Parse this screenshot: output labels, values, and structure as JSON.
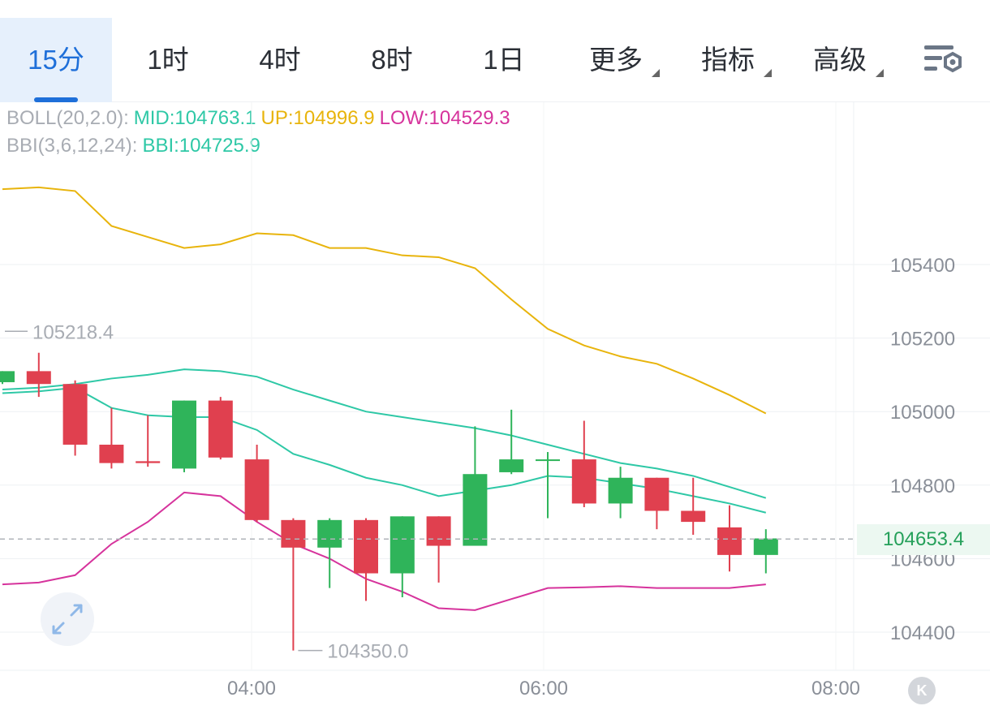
{
  "tabs": [
    {
      "label": "15分",
      "active": true
    },
    {
      "label": "1时",
      "active": false
    },
    {
      "label": "4时",
      "active": false
    },
    {
      "label": "8时",
      "active": false
    },
    {
      "label": "1日",
      "active": false
    },
    {
      "label": "更多",
      "active": false,
      "dropdown": true
    },
    {
      "label": "指标",
      "active": false,
      "dropdown": true
    },
    {
      "label": "高级",
      "active": false,
      "dropdown": true
    }
  ],
  "settings_icon": "chart-settings-icon",
  "legend": {
    "boll_name": "BOLL(20,2.0):",
    "boll_mid": "MID:104763.1",
    "boll_up": "UP:104996.9",
    "boll_low": "LOW:104529.3",
    "bbi_name": "BBI(3,6,12,24):",
    "bbi_value": "BBI:104725.9"
  },
  "current_price": "104653.4",
  "high_marker": "105218.4",
  "low_marker": "104350.0",
  "collapse_icon": "collapse-left-icon",
  "expand_icon": "expand-icon",
  "colors": {
    "up": "#2fb45a",
    "down": "#e0404f",
    "boll_up": "#e8b40c",
    "boll_mid": "#2ec8a6",
    "boll_low": "#d6339c",
    "bbi": "#2ec8a6",
    "accent": "#1e6fd9"
  },
  "chart_data": {
    "type": "candlestick",
    "x_ticks": [
      "04:00",
      "06:00",
      "08:00"
    ],
    "y_ticks": [
      105400,
      105200,
      105000,
      104800,
      104600,
      104400
    ],
    "y_range": [
      104310,
      105720
    ],
    "candles": [
      {
        "o": 105080,
        "h": 105110,
        "l": 105075,
        "c": 105110
      },
      {
        "o": 105110,
        "h": 105160,
        "l": 105040,
        "c": 105075
      },
      {
        "o": 105075,
        "h": 105085,
        "l": 104880,
        "c": 104910
      },
      {
        "o": 104910,
        "h": 105010,
        "l": 104845,
        "c": 104860
      },
      {
        "o": 104865,
        "h": 104990,
        "l": 104850,
        "c": 104860
      },
      {
        "o": 104845,
        "h": 105030,
        "l": 104835,
        "c": 105030
      },
      {
        "o": 105030,
        "h": 105040,
        "l": 104870,
        "c": 104875
      },
      {
        "o": 104870,
        "h": 104910,
        "l": 104700,
        "c": 104705
      },
      {
        "o": 104705,
        "h": 104710,
        "l": 104350,
        "c": 104630
      },
      {
        "o": 104630,
        "h": 104710,
        "l": 104520,
        "c": 104705
      },
      {
        "o": 104705,
        "h": 104710,
        "l": 104485,
        "c": 104560
      },
      {
        "o": 104560,
        "h": 104715,
        "l": 104495,
        "c": 104715
      },
      {
        "o": 104715,
        "h": 104715,
        "l": 104535,
        "c": 104635
      },
      {
        "o": 104635,
        "h": 104960,
        "l": 104635,
        "c": 104830
      },
      {
        "o": 104835,
        "h": 105005,
        "l": 104830,
        "c": 104870
      },
      {
        "o": 104870,
        "h": 104890,
        "l": 104710,
        "c": 104870
      },
      {
        "o": 104870,
        "h": 104975,
        "l": 104740,
        "c": 104750
      },
      {
        "o": 104750,
        "h": 104850,
        "l": 104710,
        "c": 104820
      },
      {
        "o": 104820,
        "h": 104820,
        "l": 104680,
        "c": 104730
      },
      {
        "o": 104730,
        "h": 104820,
        "l": 104665,
        "c": 104700
      },
      {
        "o": 104685,
        "h": 104745,
        "l": 104565,
        "c": 104610
      },
      {
        "o": 104610,
        "h": 104680,
        "l": 104560,
        "c": 104655
      }
    ],
    "boll_up": [
      105605,
      105610,
      105600,
      105505,
      105475,
      105445,
      105455,
      105485,
      105480,
      105445,
      105445,
      105425,
      105420,
      105390,
      105305,
      105225,
      105180,
      105150,
      105130,
      105090,
      105045,
      104995
    ],
    "boll_mid": [
      105060,
      105065,
      105075,
      105090,
      105100,
      105115,
      105110,
      105095,
      105060,
      105030,
      105000,
      104985,
      104970,
      104955,
      104935,
      104910,
      104885,
      104860,
      104845,
      104825,
      104795,
      104765
    ],
    "boll_low": [
      104530,
      104535,
      104555,
      104640,
      104700,
      104780,
      104770,
      104700,
      104640,
      104600,
      104545,
      104510,
      104465,
      104460,
      104490,
      104520,
      104522,
      104525,
      104520,
      104520,
      104520,
      104530
    ],
    "bbi": [
      105050,
      105055,
      105065,
      105010,
      104990,
      104985,
      104985,
      104950,
      104885,
      104855,
      104820,
      104800,
      104770,
      104785,
      104800,
      104825,
      104820,
      104805,
      104790,
      104770,
      104750,
      104725
    ]
  }
}
